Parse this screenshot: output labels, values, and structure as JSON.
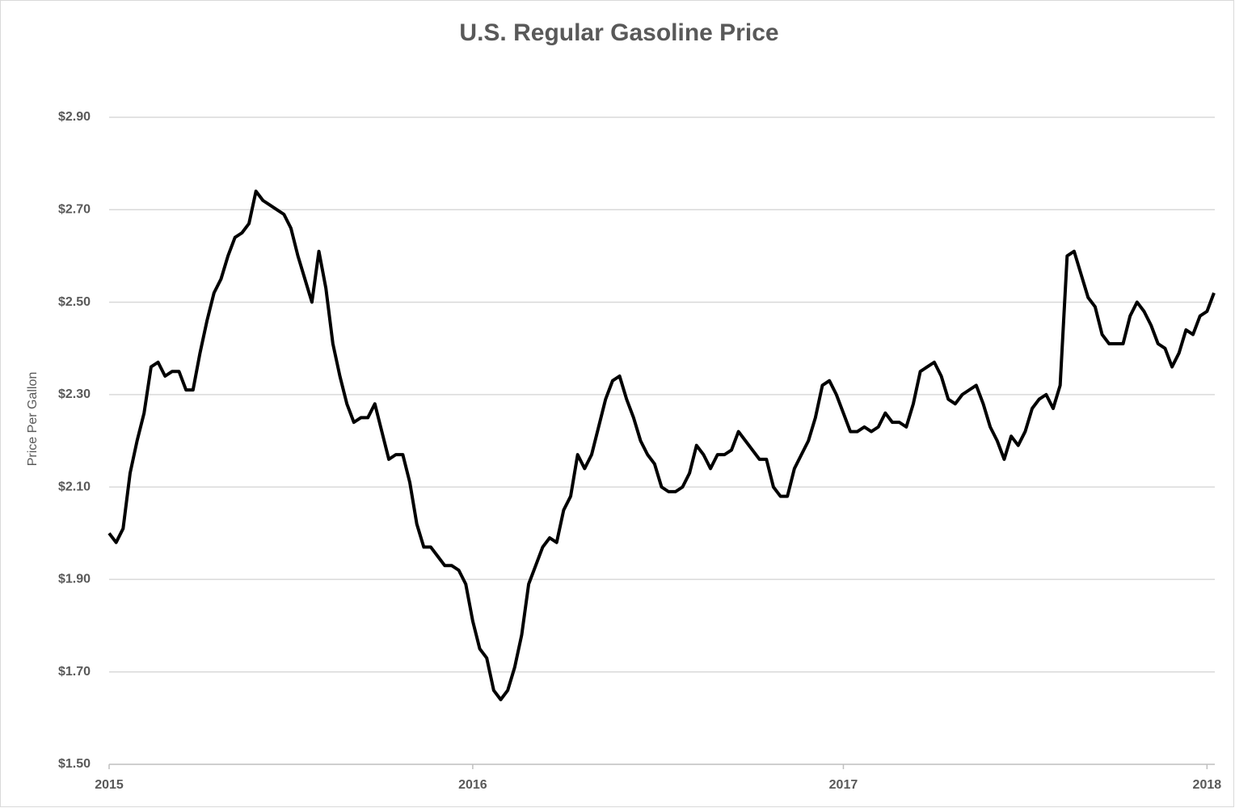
{
  "chart_data": {
    "type": "line",
    "title": "U.S. Regular Gasoline Price",
    "y_label": "Price Per Gallon",
    "categories": [
      "2015",
      null,
      null,
      null,
      null,
      null,
      null,
      null,
      null,
      null,
      null,
      null,
      null,
      null,
      null,
      null,
      null,
      null,
      null,
      null,
      null,
      null,
      null,
      null,
      null,
      null,
      null,
      null,
      null,
      null,
      null,
      null,
      null,
      null,
      null,
      null,
      null,
      null,
      null,
      null,
      null,
      null,
      null,
      null,
      null,
      null,
      null,
      null,
      null,
      null,
      null,
      null,
      "2016",
      null,
      null,
      null,
      null,
      null,
      null,
      null,
      null,
      null,
      null,
      null,
      null,
      null,
      null,
      null,
      null,
      null,
      null,
      null,
      null,
      null,
      null,
      null,
      null,
      null,
      null,
      null,
      null,
      null,
      null,
      null,
      null,
      null,
      null,
      null,
      null,
      null,
      null,
      null,
      null,
      null,
      null,
      null,
      null,
      null,
      null,
      null,
      null,
      null,
      null,
      null,
      null,
      "2017",
      null,
      null,
      null,
      null,
      null,
      null,
      null,
      null,
      null,
      null,
      null,
      null,
      null,
      null,
      null,
      null,
      null,
      null,
      null,
      null,
      null,
      null,
      null,
      null,
      null,
      null,
      null,
      null,
      null,
      null,
      null,
      null,
      null,
      null,
      null,
      null,
      null,
      null,
      null,
      null,
      null,
      null,
      null,
      null,
      null,
      null,
      null,
      null,
      null,
      null,
      null,
      "2018",
      null
    ],
    "series": [
      {
        "name": "Regular Gasoline",
        "color": "#000000",
        "values": [
          2.0,
          1.98,
          2.01,
          2.13,
          2.2,
          2.26,
          2.36,
          2.37,
          2.34,
          2.35,
          2.35,
          2.31,
          2.31,
          2.39,
          2.46,
          2.52,
          2.55,
          2.6,
          2.64,
          2.65,
          2.67,
          2.74,
          2.72,
          2.71,
          2.7,
          2.69,
          2.66,
          2.6,
          2.55,
          2.5,
          2.61,
          2.53,
          2.41,
          2.34,
          2.28,
          2.24,
          2.25,
          2.25,
          2.28,
          2.22,
          2.16,
          2.17,
          2.17,
          2.11,
          2.02,
          1.97,
          1.97,
          1.95,
          1.93,
          1.93,
          1.92,
          1.89,
          1.81,
          1.75,
          1.73,
          1.66,
          1.64,
          1.66,
          1.71,
          1.78,
          1.89,
          1.93,
          1.97,
          1.99,
          1.98,
          2.05,
          2.08,
          2.17,
          2.14,
          2.17,
          2.23,
          2.29,
          2.33,
          2.34,
          2.29,
          2.25,
          2.2,
          2.17,
          2.15,
          2.1,
          2.09,
          2.09,
          2.1,
          2.13,
          2.19,
          2.17,
          2.14,
          2.17,
          2.17,
          2.18,
          2.22,
          2.2,
          2.18,
          2.16,
          2.16,
          2.1,
          2.08,
          2.08,
          2.14,
          2.17,
          2.2,
          2.25,
          2.32,
          2.33,
          2.3,
          2.26,
          2.22,
          2.22,
          2.23,
          2.22,
          2.23,
          2.26,
          2.24,
          2.24,
          2.23,
          2.28,
          2.35,
          2.36,
          2.37,
          2.34,
          2.29,
          2.28,
          2.3,
          2.31,
          2.32,
          2.28,
          2.23,
          2.2,
          2.16,
          2.21,
          2.19,
          2.22,
          2.27,
          2.29,
          2.3,
          2.27,
          2.32,
          2.6,
          2.61,
          2.56,
          2.51,
          2.49,
          2.43,
          2.41,
          2.41,
          2.41,
          2.47,
          2.5,
          2.48,
          2.45,
          2.41,
          2.4,
          2.36,
          2.39,
          2.44,
          2.43,
          2.47,
          2.48,
          2.52
        ]
      }
    ],
    "ylim": [
      1.5,
      2.9
    ],
    "yticks": [
      {
        "value": 1.5,
        "label": "$1.50"
      },
      {
        "value": 1.7,
        "label": "$1.70"
      },
      {
        "value": 1.9,
        "label": "$1.90"
      },
      {
        "value": 2.1,
        "label": "$2.10"
      },
      {
        "value": 2.3,
        "label": "$2.30"
      },
      {
        "value": 2.5,
        "label": "$2.50"
      },
      {
        "value": 2.7,
        "label": "$2.70"
      },
      {
        "value": 2.9,
        "label": "$2.90"
      }
    ],
    "grid": true
  }
}
